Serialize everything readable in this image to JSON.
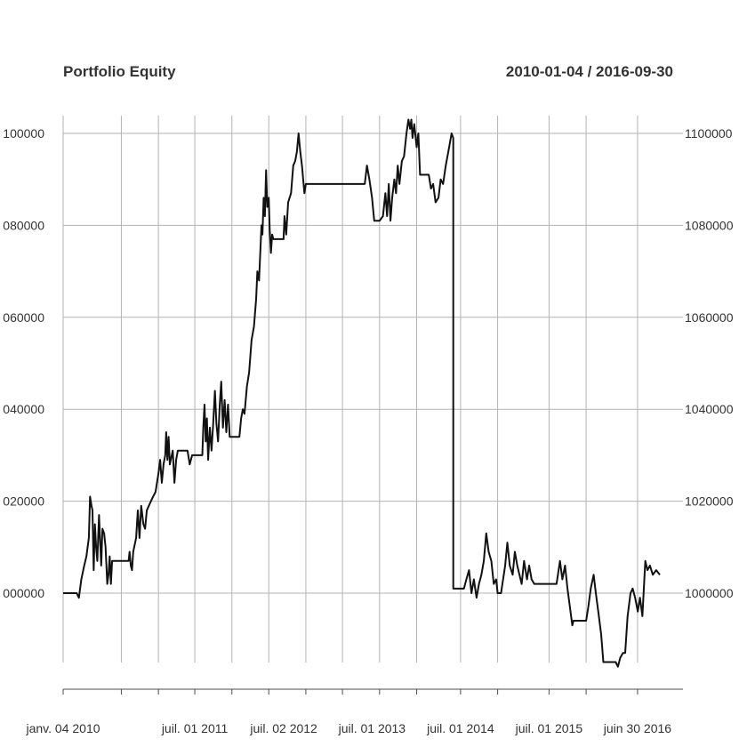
{
  "chart_data": {
    "type": "line",
    "title": "Portfolio Equity",
    "subtitle": "2010-01-04 / 2016-09-30",
    "x_range": [
      "2010-01-04",
      "2016-09-30"
    ],
    "ylim": [
      990000,
      1110000
    ],
    "y_ticks": [
      {
        "value": 1000000,
        "left_label": "000000",
        "right_label": "1000000"
      },
      {
        "value": 1020000,
        "left_label": "020000",
        "right_label": "1020000"
      },
      {
        "value": 1040000,
        "left_label": "040000",
        "right_label": "1040000"
      },
      {
        "value": 1060000,
        "left_label": "060000",
        "right_label": "1060000"
      },
      {
        "value": 1080000,
        "left_label": "080000",
        "right_label": "1080000"
      },
      {
        "value": 1100000,
        "left_label": "100000",
        "right_label": "1100000"
      }
    ],
    "x_gridlines": [
      "2010-01-04",
      "2010-09-01",
      "2011-02-01",
      "2011-07-01",
      "2011-12-01",
      "2012-05-01",
      "2012-10-01",
      "2013-03-01",
      "2013-08-01",
      "2014-01-01",
      "2014-07-01",
      "2014-12-01",
      "2015-07-01",
      "2015-12-01",
      "2016-06-30"
    ],
    "x_tick_labels": [
      {
        "date": "2010-01-04",
        "label": "janv. 04 2010"
      },
      {
        "date": "2011-07-01",
        "label": "juil. 01 2011"
      },
      {
        "date": "2012-07-02",
        "label": "juil. 02 2012"
      },
      {
        "date": "2013-07-01",
        "label": "juil. 01 2013"
      },
      {
        "date": "2014-07-01",
        "label": "juil. 01 2014"
      },
      {
        "date": "2015-07-01",
        "label": "juil. 01 2015"
      },
      {
        "date": "2016-06-30",
        "label": "juin 30 2016"
      }
    ],
    "grid": true,
    "series": [
      {
        "color": "#111111",
        "points": [
          [
            "2010-01-04",
            1000000
          ],
          [
            "2010-03-01",
            1000000
          ],
          [
            "2010-03-10",
            999000
          ],
          [
            "2010-03-20",
            1003000
          ],
          [
            "2010-04-01",
            1006000
          ],
          [
            "2010-04-10",
            1008000
          ],
          [
            "2010-04-20",
            1012000
          ],
          [
            "2010-04-25",
            1021000
          ],
          [
            "2010-05-01",
            1019000
          ],
          [
            "2010-05-05",
            1018000
          ],
          [
            "2010-05-10",
            1005000
          ],
          [
            "2010-05-15",
            1015000
          ],
          [
            "2010-05-20",
            1010000
          ],
          [
            "2010-05-25",
            1007000
          ],
          [
            "2010-06-01",
            1017000
          ],
          [
            "2010-06-05",
            1012000
          ],
          [
            "2010-06-10",
            1006000
          ],
          [
            "2010-06-15",
            1014000
          ],
          [
            "2010-06-22",
            1013000
          ],
          [
            "2010-06-28",
            1010000
          ],
          [
            "2010-07-05",
            1002000
          ],
          [
            "2010-07-10",
            1004000
          ],
          [
            "2010-07-15",
            1008000
          ],
          [
            "2010-07-20",
            1002000
          ],
          [
            "2010-07-25",
            1007000
          ],
          [
            "2010-09-01",
            1007000
          ],
          [
            "2010-10-01",
            1007000
          ],
          [
            "2010-10-05",
            1009000
          ],
          [
            "2010-10-10",
            1006000
          ],
          [
            "2010-10-15",
            1005000
          ],
          [
            "2010-10-20",
            1009000
          ],
          [
            "2010-11-01",
            1012000
          ],
          [
            "2010-11-08",
            1018000
          ],
          [
            "2010-11-15",
            1012000
          ],
          [
            "2010-11-22",
            1019000
          ],
          [
            "2010-12-01",
            1015000
          ],
          [
            "2010-12-08",
            1014000
          ],
          [
            "2010-12-15",
            1018000
          ],
          [
            "2011-01-01",
            1020000
          ],
          [
            "2011-01-10",
            1021000
          ],
          [
            "2011-01-20",
            1022000
          ],
          [
            "2011-02-01",
            1026000
          ],
          [
            "2011-02-08",
            1029000
          ],
          [
            "2011-02-15",
            1024000
          ],
          [
            "2011-02-22",
            1028000
          ],
          [
            "2011-03-01",
            1030000
          ],
          [
            "2011-03-05",
            1035000
          ],
          [
            "2011-03-10",
            1029000
          ],
          [
            "2011-03-15",
            1034000
          ],
          [
            "2011-03-20",
            1028000
          ],
          [
            "2011-04-01",
            1031000
          ],
          [
            "2011-04-08",
            1024000
          ],
          [
            "2011-04-15",
            1029000
          ],
          [
            "2011-04-22",
            1031000
          ],
          [
            "2011-05-01",
            1031000
          ],
          [
            "2011-06-01",
            1031000
          ],
          [
            "2011-06-10",
            1028000
          ],
          [
            "2011-06-20",
            1030000
          ],
          [
            "2011-07-15",
            1030000
          ],
          [
            "2011-08-01",
            1030000
          ],
          [
            "2011-08-05",
            1036000
          ],
          [
            "2011-08-10",
            1041000
          ],
          [
            "2011-08-15",
            1033000
          ],
          [
            "2011-08-20",
            1038000
          ],
          [
            "2011-08-25",
            1029000
          ],
          [
            "2011-09-01",
            1036000
          ],
          [
            "2011-09-08",
            1031000
          ],
          [
            "2011-09-15",
            1037000
          ],
          [
            "2011-09-22",
            1044000
          ],
          [
            "2011-09-28",
            1037000
          ],
          [
            "2011-10-05",
            1033000
          ],
          [
            "2011-10-12",
            1041000
          ],
          [
            "2011-10-18",
            1046000
          ],
          [
            "2011-10-25",
            1036000
          ],
          [
            "2011-11-01",
            1042000
          ],
          [
            "2011-11-08",
            1035000
          ],
          [
            "2011-11-15",
            1041000
          ],
          [
            "2011-11-22",
            1034000
          ],
          [
            "2011-12-10",
            1034000
          ],
          [
            "2012-01-01",
            1034000
          ],
          [
            "2012-01-08",
            1038000
          ],
          [
            "2012-01-15",
            1040000
          ],
          [
            "2012-01-22",
            1039000
          ],
          [
            "2012-02-01",
            1045000
          ],
          [
            "2012-02-10",
            1048000
          ],
          [
            "2012-02-20",
            1055000
          ],
          [
            "2012-03-01",
            1058000
          ],
          [
            "2012-03-10",
            1064000
          ],
          [
            "2012-03-15",
            1070000
          ],
          [
            "2012-03-22",
            1068000
          ],
          [
            "2012-04-01",
            1080000
          ],
          [
            "2012-04-05",
            1078000
          ],
          [
            "2012-04-10",
            1086000
          ],
          [
            "2012-04-15",
            1082000
          ],
          [
            "2012-04-20",
            1092000
          ],
          [
            "2012-04-25",
            1084000
          ],
          [
            "2012-05-01",
            1086000
          ],
          [
            "2012-05-05",
            1079000
          ],
          [
            "2012-05-10",
            1074000
          ],
          [
            "2012-05-15",
            1078000
          ],
          [
            "2012-05-20",
            1077000
          ],
          [
            "2012-06-01",
            1077000
          ],
          [
            "2012-07-01",
            1077000
          ],
          [
            "2012-07-05",
            1082000
          ],
          [
            "2012-07-12",
            1078000
          ],
          [
            "2012-07-20",
            1085000
          ],
          [
            "2012-08-01",
            1087000
          ],
          [
            "2012-08-10",
            1093000
          ],
          [
            "2012-08-18",
            1094000
          ],
          [
            "2012-08-25",
            1096000
          ],
          [
            "2012-09-01",
            1100000
          ],
          [
            "2012-09-08",
            1096000
          ],
          [
            "2012-09-15",
            1093000
          ],
          [
            "2012-09-25",
            1087000
          ],
          [
            "2012-10-01",
            1089000
          ],
          [
            "2013-01-01",
            1089000
          ],
          [
            "2013-04-01",
            1089000
          ],
          [
            "2013-06-01",
            1089000
          ],
          [
            "2013-06-10",
            1093000
          ],
          [
            "2013-06-20",
            1090000
          ],
          [
            "2013-07-01",
            1086000
          ],
          [
            "2013-07-10",
            1081000
          ],
          [
            "2013-08-01",
            1081000
          ],
          [
            "2013-08-15",
            1082000
          ],
          [
            "2013-08-25",
            1087000
          ],
          [
            "2013-09-01",
            1082000
          ],
          [
            "2013-09-08",
            1089000
          ],
          [
            "2013-09-15",
            1081000
          ],
          [
            "2013-09-22",
            1086000
          ],
          [
            "2013-10-01",
            1090000
          ],
          [
            "2013-10-08",
            1087000
          ],
          [
            "2013-10-15",
            1093000
          ],
          [
            "2013-10-22",
            1089000
          ],
          [
            "2013-11-01",
            1094000
          ],
          [
            "2013-11-10",
            1095000
          ],
          [
            "2013-11-20",
            1100000
          ],
          [
            "2013-11-28",
            1103000
          ],
          [
            "2013-12-05",
            1101000
          ],
          [
            "2013-12-10",
            1103000
          ],
          [
            "2013-12-15",
            1099000
          ],
          [
            "2013-12-22",
            1102000
          ],
          [
            "2014-01-01",
            1097000
          ],
          [
            "2014-01-08",
            1100000
          ],
          [
            "2014-01-15",
            1091000
          ],
          [
            "2014-02-01",
            1091000
          ],
          [
            "2014-02-20",
            1091000
          ],
          [
            "2014-03-01",
            1088000
          ],
          [
            "2014-03-10",
            1089000
          ],
          [
            "2014-03-20",
            1085000
          ],
          [
            "2014-04-01",
            1086000
          ],
          [
            "2014-04-10",
            1090000
          ],
          [
            "2014-04-20",
            1089000
          ],
          [
            "2014-05-01",
            1093000
          ],
          [
            "2014-05-15",
            1097000
          ],
          [
            "2014-05-25",
            1100000
          ],
          [
            "2014-06-01",
            1099000
          ],
          [
            "2014-06-01",
            1001000
          ],
          [
            "2014-06-15",
            1001000
          ],
          [
            "2014-07-01",
            1001000
          ],
          [
            "2014-07-15",
            1001000
          ],
          [
            "2014-07-25",
            1003000
          ],
          [
            "2014-08-05",
            1005000
          ],
          [
            "2014-08-15",
            1000000
          ],
          [
            "2014-08-25",
            1003000
          ],
          [
            "2014-09-05",
            999000
          ],
          [
            "2014-09-15",
            1002000
          ],
          [
            "2014-09-25",
            1004000
          ],
          [
            "2014-10-05",
            1007000
          ],
          [
            "2014-10-15",
            1013000
          ],
          [
            "2014-10-25",
            1009000
          ],
          [
            "2014-11-05",
            1007000
          ],
          [
            "2014-11-15",
            1002000
          ],
          [
            "2014-11-25",
            1003000
          ],
          [
            "2014-12-01",
            1000000
          ],
          [
            "2014-12-15",
            1000000
          ],
          [
            "2015-01-01",
            1006000
          ],
          [
            "2015-01-10",
            1011000
          ],
          [
            "2015-01-20",
            1006000
          ],
          [
            "2015-02-01",
            1004000
          ],
          [
            "2015-02-10",
            1009000
          ],
          [
            "2015-02-20",
            1006000
          ],
          [
            "2015-03-01",
            1004000
          ],
          [
            "2015-03-10",
            1002000
          ],
          [
            "2015-03-20",
            1007000
          ],
          [
            "2015-04-01",
            1003000
          ],
          [
            "2015-04-10",
            1006000
          ],
          [
            "2015-04-20",
            1003000
          ],
          [
            "2015-05-01",
            1002000
          ],
          [
            "2015-06-01",
            1002000
          ],
          [
            "2015-07-01",
            1002000
          ],
          [
            "2015-08-01",
            1002000
          ],
          [
            "2015-08-15",
            1007000
          ],
          [
            "2015-08-25",
            1003000
          ],
          [
            "2015-09-05",
            1006000
          ],
          [
            "2015-09-15",
            1001000
          ],
          [
            "2015-09-25",
            997000
          ],
          [
            "2015-10-05",
            993000
          ],
          [
            "2015-10-10",
            994000
          ],
          [
            "2015-11-01",
            994000
          ],
          [
            "2015-12-01",
            994000
          ],
          [
            "2015-12-10",
            997000
          ],
          [
            "2015-12-20",
            1001000
          ],
          [
            "2016-01-01",
            1004000
          ],
          [
            "2016-01-10",
            1000000
          ],
          [
            "2016-01-20",
            996000
          ],
          [
            "2016-02-01",
            991000
          ],
          [
            "2016-02-10",
            985000
          ],
          [
            "2016-03-01",
            985000
          ],
          [
            "2016-04-01",
            985000
          ],
          [
            "2016-04-10",
            984000
          ],
          [
            "2016-04-20",
            986000
          ],
          [
            "2016-05-01",
            987000
          ],
          [
            "2016-05-10",
            987000
          ],
          [
            "2016-05-20",
            995000
          ],
          [
            "2016-06-01",
            1000000
          ],
          [
            "2016-06-10",
            1001000
          ],
          [
            "2016-06-20",
            999000
          ],
          [
            "2016-07-01",
            996000
          ],
          [
            "2016-07-10",
            999000
          ],
          [
            "2016-07-20",
            995000
          ],
          [
            "2016-08-01",
            1007000
          ],
          [
            "2016-08-10",
            1005000
          ],
          [
            "2016-08-20",
            1006000
          ],
          [
            "2016-09-01",
            1004000
          ],
          [
            "2016-09-15",
            1005000
          ],
          [
            "2016-09-30",
            1004000
          ]
        ]
      }
    ]
  }
}
